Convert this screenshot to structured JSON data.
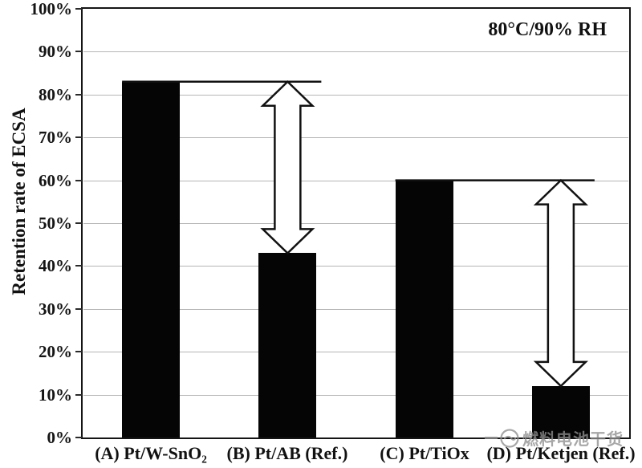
{
  "figure": {
    "background": "#ffffff",
    "watermark": {
      "icon": "swirl-logo-icon",
      "text": "燃料电池干货",
      "color": "#8f8f8f"
    }
  },
  "chart_data": {
    "type": "bar",
    "title": "",
    "categories": [
      "(A) Pt/W-SnO₂",
      "(B) Pt/AB (Ref.)",
      "(C) Pt/TiOx",
      "(D) Pt/Ketjen (Ref.)"
    ],
    "values": [
      83,
      43,
      60,
      12
    ],
    "unit": "%",
    "xlabel": "",
    "ylabel": "Retention rate of ECSA",
    "ylim": [
      0,
      100
    ],
    "ytick_step": 10,
    "ytick_labels": [
      "0%",
      "10%",
      "20%",
      "30%",
      "40%",
      "50%",
      "60%",
      "70%",
      "80%",
      "90%",
      "100%"
    ],
    "grid": true,
    "legend": "none",
    "bar_color": "#050505",
    "gridline_color": "#b5b5b5",
    "frame_color": "#151515",
    "annotation": {
      "text": "80°C/90% RH",
      "position": "top-right"
    },
    "comparison_arrows": [
      {
        "from_index": 0,
        "to_index": 1,
        "top_value": 83,
        "bottom_value": 43
      },
      {
        "from_index": 2,
        "to_index": 3,
        "top_value": 60,
        "bottom_value": 12
      }
    ]
  }
}
